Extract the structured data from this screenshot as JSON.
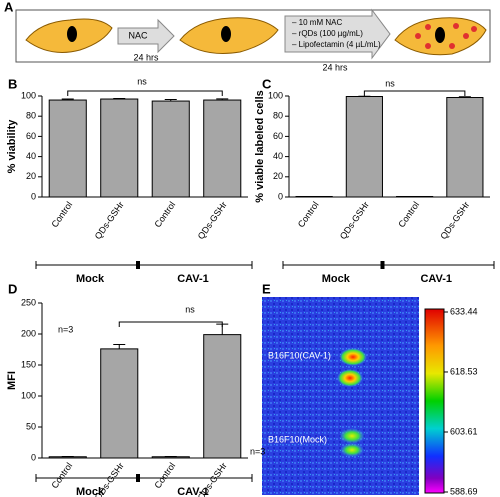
{
  "chart_data": [
    {
      "type": "bar",
      "panel": "B",
      "ylabel": "% viability",
      "categories": [
        "Control",
        "QDs-GSHr",
        "Control",
        "QDs-GSHr"
      ],
      "values": [
        96,
        97,
        95,
        96
      ],
      "errors": [
        1,
        0.5,
        1.5,
        1.2
      ],
      "color": "#a6a6a6",
      "ylim": [
        0,
        100
      ],
      "yticks": [
        0,
        20,
        40,
        60,
        80,
        100
      ],
      "groups": [
        "Mock",
        "CAV-1"
      ],
      "annotations": [
        "ns"
      ]
    },
    {
      "type": "bar",
      "panel": "C",
      "ylabel": "% viable labeled cells",
      "categories": [
        "Control",
        "QDs-GSHr",
        "Control",
        "QDs-GSHr"
      ],
      "values": [
        0.5,
        99.5,
        0.5,
        98.5
      ],
      "errors": [
        0,
        0.3,
        0,
        0.8
      ],
      "color": "#a6a6a6",
      "ylim": [
        0,
        100
      ],
      "yticks": [
        0,
        20,
        40,
        60,
        80,
        100
      ],
      "groups": [
        "Mock",
        "CAV-1"
      ],
      "annotations": [
        "ns"
      ]
    },
    {
      "type": "bar",
      "panel": "D",
      "ylabel": "MFI",
      "categories": [
        "Control",
        "QDs-GSHr",
        "Control",
        "QDs-GSHr"
      ],
      "values": [
        2,
        176,
        2,
        199
      ],
      "errors": [
        0.5,
        7,
        0.5,
        17
      ],
      "color": "#a6a6a6",
      "ylim": [
        0,
        250
      ],
      "yticks": [
        0,
        50,
        100,
        150,
        200,
        250
      ],
      "groups": [
        "Mock",
        "CAV-1"
      ],
      "annotations": [
        "ns",
        "n=3",
        "n=3"
      ]
    }
  ],
  "diagram": {
    "panel": "A",
    "arrow_1": {
      "label": "NAC",
      "time": "24 hrs"
    },
    "arrow_2": {
      "lines": [
        "– 10 mM NAC",
        "– rQDs (100 µg/mL)",
        "– Lipofectamin (4 µL/mL)"
      ],
      "time": "24 hrs"
    }
  },
  "image_panel": {
    "panel": "E",
    "labels": [
      "B16F10(CAV-1)",
      "B16F10(Mock)"
    ],
    "colorbar": {
      "lim": [
        588.69,
        633.44
      ],
      "ticks": [
        588.69,
        603.61,
        618.53,
        633.44
      ]
    }
  }
}
